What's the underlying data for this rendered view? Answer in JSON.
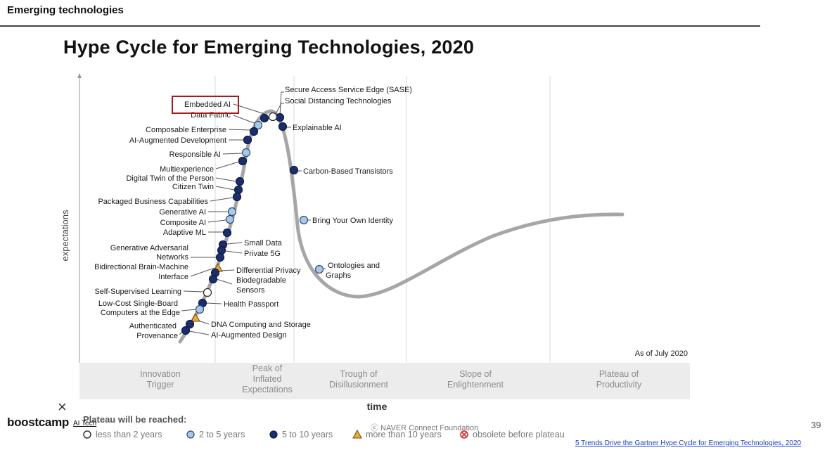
{
  "slide": {
    "header": "Emerging technologies",
    "page_number": "39",
    "footer_credit": "ⓒ NAVER Connect Foundation",
    "brand": {
      "logo_text": "boostcamp",
      "sub_text": "AI Tech",
      "close_mark": "×"
    },
    "source_link": "5 Trends Drive the Gartner Hype Cycle for Emerging Technologies, 2020"
  },
  "chart": {
    "title": "Hype Cycle for Emerging Technologies, 2020",
    "y_axis_label": "expectations",
    "x_axis_label": "time",
    "as_of": "As of July 2020",
    "highlighted": "Embedded AI",
    "phases": [
      {
        "lines": [
          "Innovation",
          "Trigger"
        ]
      },
      {
        "lines": [
          "Peak of",
          "Inflated",
          "Expectations"
        ]
      },
      {
        "lines": [
          "Trough of",
          "Disillusionment"
        ]
      },
      {
        "lines": [
          "Slope of",
          "Enlightenment"
        ]
      },
      {
        "lines": [
          "Plateau of",
          "Productivity"
        ]
      }
    ],
    "legend": {
      "title": "Plateau will be reached:",
      "items": [
        {
          "label": "less than 2 years",
          "marker": "open-circle"
        },
        {
          "label": "2 to 5 years",
          "marker": "light-blue-circle"
        },
        {
          "label": "5 to 10 years",
          "marker": "dark-blue-circle"
        },
        {
          "label": "more than 10 years",
          "marker": "orange-triangle"
        },
        {
          "label": "obsolete before plateau",
          "marker": "red-x-circle"
        }
      ]
    },
    "colors": {
      "curve": "#a6a6a6",
      "dark_blue": "#1c2d6b",
      "light_blue": "#a9c8e6",
      "orange": "#f0a830",
      "obsolete_red": "#d83a3a",
      "highlight_box": "#a11c1c"
    },
    "technologies": [
      {
        "name": "Secure Access Service Edge (SASE)",
        "time_to_plateau": "5 to 10 years"
      },
      {
        "name": "Social Distancing Technologies",
        "time_to_plateau": "less than 2 years"
      },
      {
        "name": "Embedded AI",
        "time_to_plateau": "5 to 10 years"
      },
      {
        "name": "Data Fabric",
        "time_to_plateau": "2 to 5 years"
      },
      {
        "name": "Explainable AI",
        "time_to_plateau": "5 to 10 years"
      },
      {
        "name": "Composable Enterprise",
        "time_to_plateau": "5 to 10 years"
      },
      {
        "name": "AI-Augmented Development",
        "time_to_plateau": "5 to 10 years"
      },
      {
        "name": "Responsible AI",
        "time_to_plateau": "2 to 5 years"
      },
      {
        "name": "Carbon-Based Transistors",
        "time_to_plateau": "5 to 10 years"
      },
      {
        "name": "Multiexperience",
        "time_to_plateau": "5 to 10 years"
      },
      {
        "name": "Digital Twin of the Person",
        "time_to_plateau": "5 to 10 years"
      },
      {
        "name": "Citizen Twin",
        "time_to_plateau": "5 to 10 years"
      },
      {
        "name": "Packaged Business Capabilities",
        "time_to_plateau": "5 to 10 years"
      },
      {
        "name": "Generative AI",
        "time_to_plateau": "2 to 5 years"
      },
      {
        "name": "Composite AI",
        "time_to_plateau": "2 to 5 years"
      },
      {
        "name": "Adaptive ML",
        "time_to_plateau": "5 to 10 years"
      },
      {
        "name": "Bring Your Own Identity",
        "time_to_plateau": "2 to 5 years"
      },
      {
        "name": "Small Data",
        "time_to_plateau": "5 to 10 years"
      },
      {
        "name": "Private 5G",
        "time_to_plateau": "5 to 10 years"
      },
      {
        "name": "Generative Adversarial Networks",
        "time_to_plateau": "5 to 10 years"
      },
      {
        "name": "Bidirectional Brain-Machine Interface",
        "time_to_plateau": "more than 10 years"
      },
      {
        "name": "Differential Privacy",
        "time_to_plateau": "5 to 10 years"
      },
      {
        "name": "Biodegradable Sensors",
        "time_to_plateau": "5 to 10 years"
      },
      {
        "name": "Ontologies and Graphs",
        "time_to_plateau": "2 to 5 years"
      },
      {
        "name": "Self-Supervised Learning",
        "time_to_plateau": "less than 2 years"
      },
      {
        "name": "Health Passport",
        "time_to_plateau": "5 to 10 years"
      },
      {
        "name": "Low-Cost Single-Board Computers at the Edge",
        "time_to_plateau": "2 to 5 years"
      },
      {
        "name": "DNA Computing and Storage",
        "time_to_plateau": "more than 10 years"
      },
      {
        "name": "Authenticated Provenance",
        "time_to_plateau": "5 to 10 years"
      },
      {
        "name": "AI-Augmented Design",
        "time_to_plateau": "5 to 10 years"
      }
    ]
  }
}
